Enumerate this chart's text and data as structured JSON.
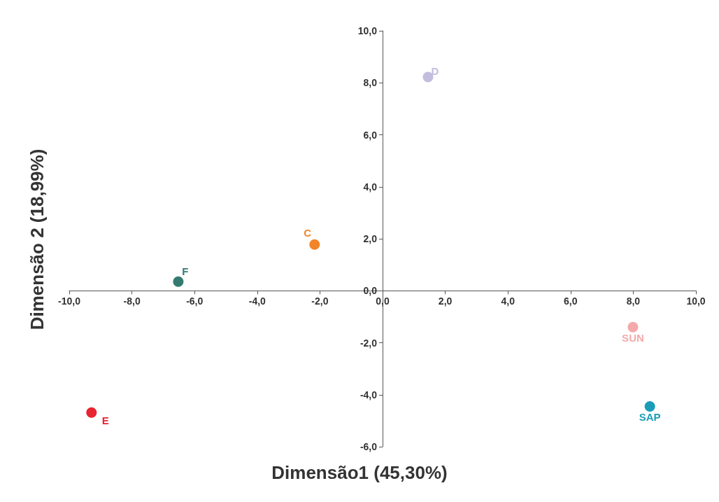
{
  "chart_data": {
    "type": "scatter",
    "xlabel": "Dimensão1 (45,30%)",
    "ylabel": "Dimensão 2 (18,99%)",
    "xlim": [
      -10,
      10
    ],
    "ylim": [
      -6,
      10
    ],
    "xticks": [
      {
        "value": -10,
        "label": "-10,0"
      },
      {
        "value": -8,
        "label": "-8,0"
      },
      {
        "value": -6,
        "label": "-6,0"
      },
      {
        "value": -4,
        "label": "-4,0"
      },
      {
        "value": -2,
        "label": "-2,0"
      },
      {
        "value": 0,
        "label": "0,0"
      },
      {
        "value": 2,
        "label": "2,0"
      },
      {
        "value": 4,
        "label": "4,0"
      },
      {
        "value": 6,
        "label": "6,0"
      },
      {
        "value": 8,
        "label": "8,0"
      },
      {
        "value": 10,
        "label": "10,0"
      }
    ],
    "yticks": [
      {
        "value": -6,
        "label": "-6,0"
      },
      {
        "value": -4,
        "label": "-4,0"
      },
      {
        "value": -2,
        "label": "-2,0"
      },
      {
        "value": 0,
        "label": "0,0"
      },
      {
        "value": 2,
        "label": "2,0"
      },
      {
        "value": 4,
        "label": "4,0"
      },
      {
        "value": 6,
        "label": "6,0"
      },
      {
        "value": 8,
        "label": "8,0"
      },
      {
        "value": 10,
        "label": "10,0"
      }
    ],
    "grid": false,
    "legend": false,
    "marker": "circle",
    "series": [
      {
        "name": "D",
        "color": "#c3bddf",
        "x": [
          1.45
        ],
        "values": [
          8.22
        ]
      },
      {
        "name": "C",
        "color": "#f2852a",
        "x": [
          -2.17
        ],
        "values": [
          1.78
        ]
      },
      {
        "name": "F",
        "color": "#357a70",
        "x": [
          -6.52
        ],
        "values": [
          0.35
        ]
      },
      {
        "name": "E",
        "color": "#e82530",
        "x": [
          -9.29
        ],
        "values": [
          -4.69
        ]
      },
      {
        "name": "SUN",
        "color": "#f4aaaa",
        "x": [
          7.99
        ],
        "values": [
          -1.4
        ]
      },
      {
        "name": "SAP",
        "color": "#1b9db8",
        "x": [
          8.53
        ],
        "values": [
          -4.45
        ]
      }
    ]
  }
}
